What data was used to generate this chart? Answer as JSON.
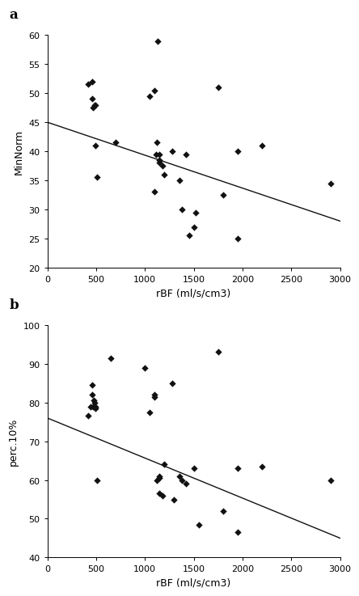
{
  "panel_a": {
    "label": "a",
    "scatter_x": [
      420,
      460,
      460,
      470,
      480,
      490,
      490,
      510,
      700,
      1050,
      1100,
      1100,
      1110,
      1120,
      1150,
      1150,
      1150,
      1180,
      1200,
      1280,
      1350,
      1380,
      1420,
      1450,
      1500,
      1520,
      1750,
      1800,
      1950,
      1950,
      2200,
      2900,
      1130
    ],
    "scatter_y": [
      51.5,
      52,
      49,
      47.5,
      48,
      48,
      41,
      35.5,
      41.5,
      49.5,
      50.5,
      33,
      39.5,
      41.5,
      38.5,
      39.5,
      38,
      37.5,
      36,
      40,
      35,
      30,
      39.5,
      25.5,
      27,
      29.5,
      51,
      32.5,
      40,
      25,
      41,
      34.5,
      59
    ],
    "line_x": [
      0,
      3000
    ],
    "line_y": [
      45.0,
      28.0
    ],
    "xlabel": "rBF (ml/s/cm3)",
    "ylabel": "MinNorm",
    "xlim": [
      0,
      3000
    ],
    "ylim": [
      20,
      60
    ],
    "xticks": [
      0,
      500,
      1000,
      1500,
      2000,
      2500,
      3000
    ],
    "yticks": [
      20,
      25,
      30,
      35,
      40,
      45,
      50,
      55,
      60
    ]
  },
  "panel_b": {
    "label": "b",
    "scatter_x": [
      420,
      440,
      460,
      460,
      470,
      475,
      480,
      490,
      490,
      510,
      650,
      1000,
      1050,
      1100,
      1100,
      1120,
      1150,
      1150,
      1150,
      1180,
      1200,
      1280,
      1300,
      1350,
      1380,
      1420,
      1500,
      1550,
      1750,
      1800,
      1950,
      1950,
      2200,
      2900
    ],
    "scatter_y": [
      76.5,
      79,
      84.5,
      82,
      79,
      80.5,
      80,
      78.5,
      79,
      60,
      91.5,
      89,
      77.5,
      82,
      81.5,
      60,
      61,
      60.5,
      56.5,
      56,
      64,
      85,
      55,
      61,
      60,
      59,
      63,
      48.5,
      93,
      52,
      63,
      46.5,
      63.5,
      60
    ],
    "line_x": [
      0,
      3000
    ],
    "line_y": [
      76.0,
      45.0
    ],
    "xlabel": "rBF (ml/s/cm3)",
    "ylabel": "perc.10%",
    "xlim": [
      0,
      3000
    ],
    "ylim": [
      40,
      100
    ],
    "xticks": [
      0,
      500,
      1000,
      1500,
      2000,
      2500,
      3000
    ],
    "yticks": [
      40,
      50,
      60,
      70,
      80,
      90,
      100
    ]
  },
  "marker_size": 18,
  "marker_color": "#111111",
  "marker_style": "D",
  "line_color": "#111111",
  "line_width": 1.0,
  "font_size_label": 9,
  "font_size_tick": 8,
  "font_size_panel_label": 12
}
